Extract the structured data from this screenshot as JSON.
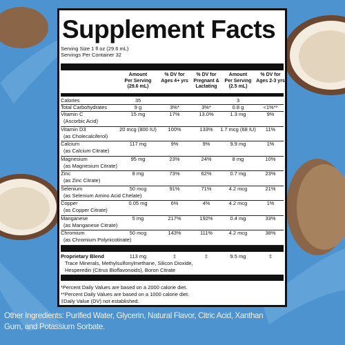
{
  "label": {
    "title": "Supplement Facts",
    "serving_size": "Serving Size 1 fl oz (29.6 mL)",
    "servings_per_container": "Servings Per Container 32",
    "columns": [
      [
        "Amount",
        "Per Serving",
        "(29.6 mL)"
      ],
      [
        "% DV for",
        "Ages 4+ yrs"
      ],
      [
        "% DV for",
        "Pregnant &",
        "Lactating"
      ],
      [
        "Amount",
        "Per Serving",
        "(2.5 mL)"
      ],
      [
        "% DV for",
        "Ages 2-3 yrs"
      ]
    ],
    "rows": [
      {
        "name": "Calories",
        "amount": "35",
        "amount_small": "3"
      },
      {
        "name": "Total Carbohydrates",
        "amount": "9 g",
        "dv_adult": "3%*",
        "dv_pregnant": "3%*",
        "amount_small": "0.8 g",
        "dv_child": "<1%**"
      },
      {
        "name": "Vitamin C",
        "detail": "(Ascorbic Acid)",
        "amount": "15 mg",
        "dv_adult": "17%",
        "dv_pregnant": "13.0%",
        "amount_small": "1.3 mg",
        "dv_child": "9%"
      },
      {
        "name": "Vitamin D3",
        "detail": "(as Cholecalciferol)",
        "amount": "20 mcg (800 IU)",
        "dv_adult": "100%",
        "dv_pregnant": "133%",
        "amount_small": "1.7 mcg (68 IU)",
        "dv_child": "11%"
      },
      {
        "name": "Calcium",
        "detail": "(as Calcium Citrate)",
        "amount": "117 mg",
        "dv_adult": "9%",
        "dv_pregnant": "9%",
        "amount_small": "9.9 mg",
        "dv_child": "1%"
      },
      {
        "name": "Magnesium",
        "detail": "(as Magnesium Citrate)",
        "amount": "95 mg",
        "dv_adult": "23%",
        "dv_pregnant": "24%",
        "amount_small": "8 mg",
        "dv_child": "10%"
      },
      {
        "name": "Zinc",
        "detail": "(as Zinc Citrate)",
        "amount": "8 mg",
        "dv_adult": "73%",
        "dv_pregnant": "62%",
        "amount_small": "0.7 mg",
        "dv_child": "23%"
      },
      {
        "name": "Selenium",
        "detail": "(as Selenium Amino Acid Chelate)",
        "amount": "50 mcg",
        "dv_adult": "91%",
        "dv_pregnant": "71%",
        "amount_small": "4.2 mcg",
        "dv_child": "21%"
      },
      {
        "name": "Copper",
        "detail": "(as Copper Citrate)",
        "amount": "0.05 mg",
        "dv_adult": "6%",
        "dv_pregnant": "4%",
        "amount_small": "4.2 mcg",
        "dv_child": "1%"
      },
      {
        "name": "Manganese",
        "detail": "(as Manganese Citrate)",
        "amount": "5 mg",
        "dv_adult": "217%",
        "dv_pregnant": "192%",
        "amount_small": "0.4 mg",
        "dv_child": "33%"
      },
      {
        "name": "Chromium",
        "detail": "(as Chromium Polynicotinate)",
        "amount": "50 mcg",
        "dv_adult": "143%",
        "dv_pregnant": "111%",
        "amount_small": "4.2 mcg",
        "dv_child": "38%"
      }
    ],
    "blend": {
      "name": "Proprietary Blend",
      "amount": "113 mg",
      "dv_adult": "‡",
      "dv_pregnant": "‡",
      "amount_small": "9.5 mg",
      "dv_child": "‡",
      "ingredients": [
        "Trace Minerals, Methylsulfonylmethane, Silicon Dioxide,",
        "Hesperedin (Citrus Bioflavonoids), Boron Citrate"
      ]
    },
    "footnotes": [
      "*Percent Daily Values are based on a 2000 calorie diet.",
      "**Percent Daily Values are based on a 1000 calorie diet.",
      "‡Daily Value (DV) not established."
    ]
  },
  "other_ingredients": [
    "Other Ingredients: Purified Water, Glycerin, Natural Flavor, Citric Acid, Xanthan",
    "Gum, and Potassium Sorbate."
  ]
}
